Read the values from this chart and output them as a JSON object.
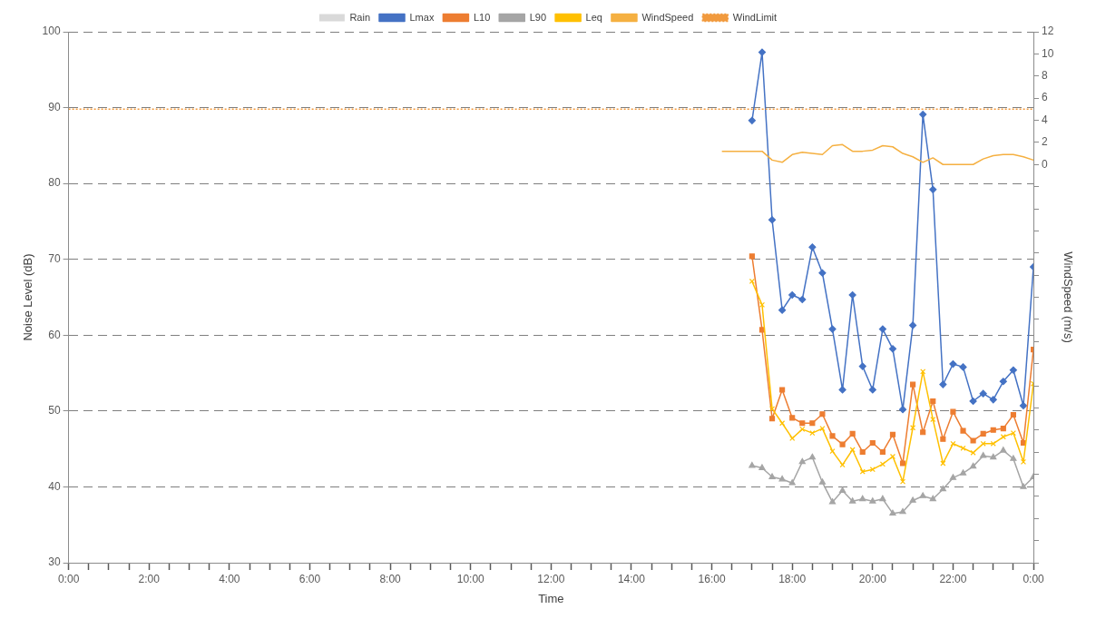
{
  "chart_data": {
    "type": "line",
    "xlabel": "Time",
    "ylabel": "Noise Level (dB)",
    "y2label": "WindSpeed (m/s)",
    "xlim": [
      0,
      24
    ],
    "xticks": [
      {
        "value": 0,
        "label": "0:00"
      },
      {
        "value": 0.5,
        "label": null
      },
      {
        "value": 1,
        "label": null
      },
      {
        "value": 1.5,
        "label": null
      },
      {
        "value": 2,
        "label": "2:00"
      },
      {
        "value": 2.5,
        "label": null
      },
      {
        "value": 3,
        "label": null
      },
      {
        "value": 3.5,
        "label": null
      },
      {
        "value": 4,
        "label": "4:00"
      },
      {
        "value": 4.5,
        "label": null
      },
      {
        "value": 5,
        "label": null
      },
      {
        "value": 5.5,
        "label": null
      },
      {
        "value": 6,
        "label": "6:00"
      },
      {
        "value": 6.5,
        "label": null
      },
      {
        "value": 7,
        "label": null
      },
      {
        "value": 7.5,
        "label": null
      },
      {
        "value": 8,
        "label": "8:00"
      },
      {
        "value": 8.5,
        "label": null
      },
      {
        "value": 9,
        "label": null
      },
      {
        "value": 9.5,
        "label": null
      },
      {
        "value": 10,
        "label": "10:00"
      },
      {
        "value": 10.5,
        "label": null
      },
      {
        "value": 11,
        "label": null
      },
      {
        "value": 11.5,
        "label": null
      },
      {
        "value": 12,
        "label": "12:00"
      },
      {
        "value": 12.5,
        "label": null
      },
      {
        "value": 13,
        "label": null
      },
      {
        "value": 13.5,
        "label": null
      },
      {
        "value": 14,
        "label": "14:00"
      },
      {
        "value": 14.5,
        "label": null
      },
      {
        "value": 15,
        "label": null
      },
      {
        "value": 15.5,
        "label": null
      },
      {
        "value": 16,
        "label": "16:00"
      },
      {
        "value": 16.5,
        "label": null
      },
      {
        "value": 17,
        "label": null
      },
      {
        "value": 17.5,
        "label": null
      },
      {
        "value": 18,
        "label": "18:00"
      },
      {
        "value": 18.5,
        "label": null
      },
      {
        "value": 19,
        "label": null
      },
      {
        "value": 19.5,
        "label": null
      },
      {
        "value": 20,
        "label": "20:00"
      },
      {
        "value": 20.5,
        "label": null
      },
      {
        "value": 21,
        "label": null
      },
      {
        "value": 21.5,
        "label": null
      },
      {
        "value": 22,
        "label": "22:00"
      },
      {
        "value": 22.5,
        "label": null
      },
      {
        "value": 23,
        "label": null
      },
      {
        "value": 23.5,
        "label": null
      },
      {
        "value": 24,
        "label": "0:00"
      }
    ],
    "ylim": [
      30,
      100
    ],
    "yticks": [
      30,
      40,
      50,
      60,
      70,
      80,
      90,
      100
    ],
    "y2lim": [
      -36,
      12
    ],
    "y2ticks": [
      {
        "value": -36,
        "label": null
      },
      {
        "value": -34,
        "label": null
      },
      {
        "value": -32,
        "label": null
      },
      {
        "value": -30,
        "label": null
      },
      {
        "value": -28,
        "label": null
      },
      {
        "value": -26,
        "label": null
      },
      {
        "value": -24,
        "label": null
      },
      {
        "value": -22,
        "label": null
      },
      {
        "value": -20,
        "label": null
      },
      {
        "value": -18,
        "label": null
      },
      {
        "value": -16,
        "label": null
      },
      {
        "value": -14,
        "label": null
      },
      {
        "value": -12,
        "label": null
      },
      {
        "value": -10,
        "label": null
      },
      {
        "value": -8,
        "label": null
      },
      {
        "value": -6,
        "label": null
      },
      {
        "value": -4,
        "label": null
      },
      {
        "value": -2,
        "label": null
      },
      0,
      2,
      4,
      6,
      8,
      10,
      12
    ],
    "grid": "y",
    "legend": "top",
    "series": [
      {
        "name": "Rain",
        "type": "bar",
        "color": "#d9d9d9"
      },
      {
        "name": "Lmax",
        "color": "#4472c4",
        "marker": "diamond",
        "x": [
          17,
          17.25,
          17.5,
          17.75,
          18,
          18.25,
          18.5,
          18.75,
          19,
          19.25,
          19.5,
          19.75,
          20,
          20.25,
          20.5,
          20.75,
          21,
          21.25,
          21.5,
          21.75,
          22,
          22.25,
          22.5,
          22.75,
          23,
          23.25,
          23.5,
          23.75,
          24
        ],
        "values": [
          88.3,
          97.3,
          75.2,
          63.3,
          65.3,
          64.7,
          71.6,
          68.2,
          60.8,
          52.8,
          65.3,
          55.9,
          52.8,
          60.8,
          58.2,
          50.2,
          61.3,
          89.1,
          79.2,
          53.5,
          56.2,
          55.8,
          51.3,
          52.3,
          51.5,
          53.9,
          55.4,
          50.7,
          69.0
        ]
      },
      {
        "name": "L10",
        "color": "#ed7d31",
        "marker": "square",
        "x": [
          17,
          17.25,
          17.5,
          17.75,
          18,
          18.25,
          18.5,
          18.75,
          19,
          19.25,
          19.5,
          19.75,
          20,
          20.25,
          20.5,
          20.75,
          21,
          21.25,
          21.5,
          21.75,
          22,
          22.25,
          22.5,
          22.75,
          23,
          23.25,
          23.5,
          23.75,
          24
        ],
        "values": [
          70.4,
          60.7,
          49.0,
          52.8,
          49.1,
          48.4,
          48.4,
          49.6,
          46.7,
          45.6,
          47.0,
          44.6,
          45.8,
          44.6,
          46.9,
          43.1,
          53.5,
          47.2,
          51.3,
          46.3,
          49.9,
          47.4,
          46.1,
          47.0,
          47.5,
          47.7,
          49.5,
          45.8,
          58.1
        ]
      },
      {
        "name": "L90",
        "color": "#a5a5a5",
        "marker": "triangle",
        "x": [
          17,
          17.25,
          17.5,
          17.75,
          18,
          18.25,
          18.5,
          18.75,
          19,
          19.25,
          19.5,
          19.75,
          20,
          20.25,
          20.5,
          20.75,
          21,
          21.25,
          21.5,
          21.75,
          22,
          22.25,
          22.5,
          22.75,
          23,
          23.25,
          23.5,
          23.75,
          24
        ],
        "values": [
          42.8,
          42.5,
          41.3,
          41.0,
          40.5,
          43.3,
          43.9,
          40.6,
          38.0,
          39.5,
          38.1,
          38.4,
          38.1,
          38.4,
          36.5,
          36.7,
          38.2,
          38.8,
          38.4,
          39.7,
          41.2,
          41.8,
          42.7,
          44.1,
          43.9,
          44.8,
          43.7,
          40.0,
          41.3
        ]
      },
      {
        "name": "Leq",
        "color": "#ffc000",
        "marker": "cross",
        "x": [
          17,
          17.25,
          17.5,
          17.75,
          18,
          18.25,
          18.5,
          18.75,
          19,
          19.25,
          19.5,
          19.75,
          20,
          20.25,
          20.5,
          20.75,
          21,
          21.25,
          21.5,
          21.75,
          22,
          22.25,
          22.5,
          22.75,
          23,
          23.25,
          23.5,
          23.75,
          24
        ],
        "values": [
          67.1,
          64.0,
          50.3,
          48.4,
          46.4,
          47.6,
          47.1,
          47.7,
          44.7,
          42.9,
          44.9,
          42.0,
          42.3,
          43.0,
          44.0,
          40.7,
          47.8,
          55.2,
          48.9,
          43.1,
          45.7,
          45.1,
          44.5,
          45.7,
          45.7,
          46.6,
          47.1,
          43.3,
          53.6
        ]
      },
      {
        "name": "WindSpeed",
        "color": "#f5b041",
        "axis": "y2",
        "x": [
          16.25,
          16.5,
          16.75,
          17,
          17.25,
          17.5,
          17.75,
          18,
          18.25,
          18.5,
          18.75,
          19,
          19.25,
          19.5,
          19.75,
          20,
          20.25,
          20.5,
          20.75,
          21,
          21.25,
          21.5,
          21.75,
          22,
          22.25,
          22.5,
          22.75,
          23,
          23.25,
          23.5,
          23.75,
          24
        ],
        "values": [
          1.2,
          1.2,
          1.2,
          1.2,
          1.2,
          0.4,
          0.2,
          0.9,
          1.1,
          1.0,
          0.9,
          1.7,
          1.8,
          1.2,
          1.2,
          1.3,
          1.7,
          1.6,
          1.0,
          0.7,
          0.2,
          0.6,
          0,
          0,
          0,
          0,
          0.5,
          0.8,
          0.9,
          0.9,
          0.7,
          0.4
        ]
      },
      {
        "name": "WindLimit",
        "color": "#f19a3e",
        "axis": "y2",
        "line_style": "dotted",
        "x": [
          0,
          24
        ],
        "values": [
          5,
          5
        ]
      }
    ]
  }
}
